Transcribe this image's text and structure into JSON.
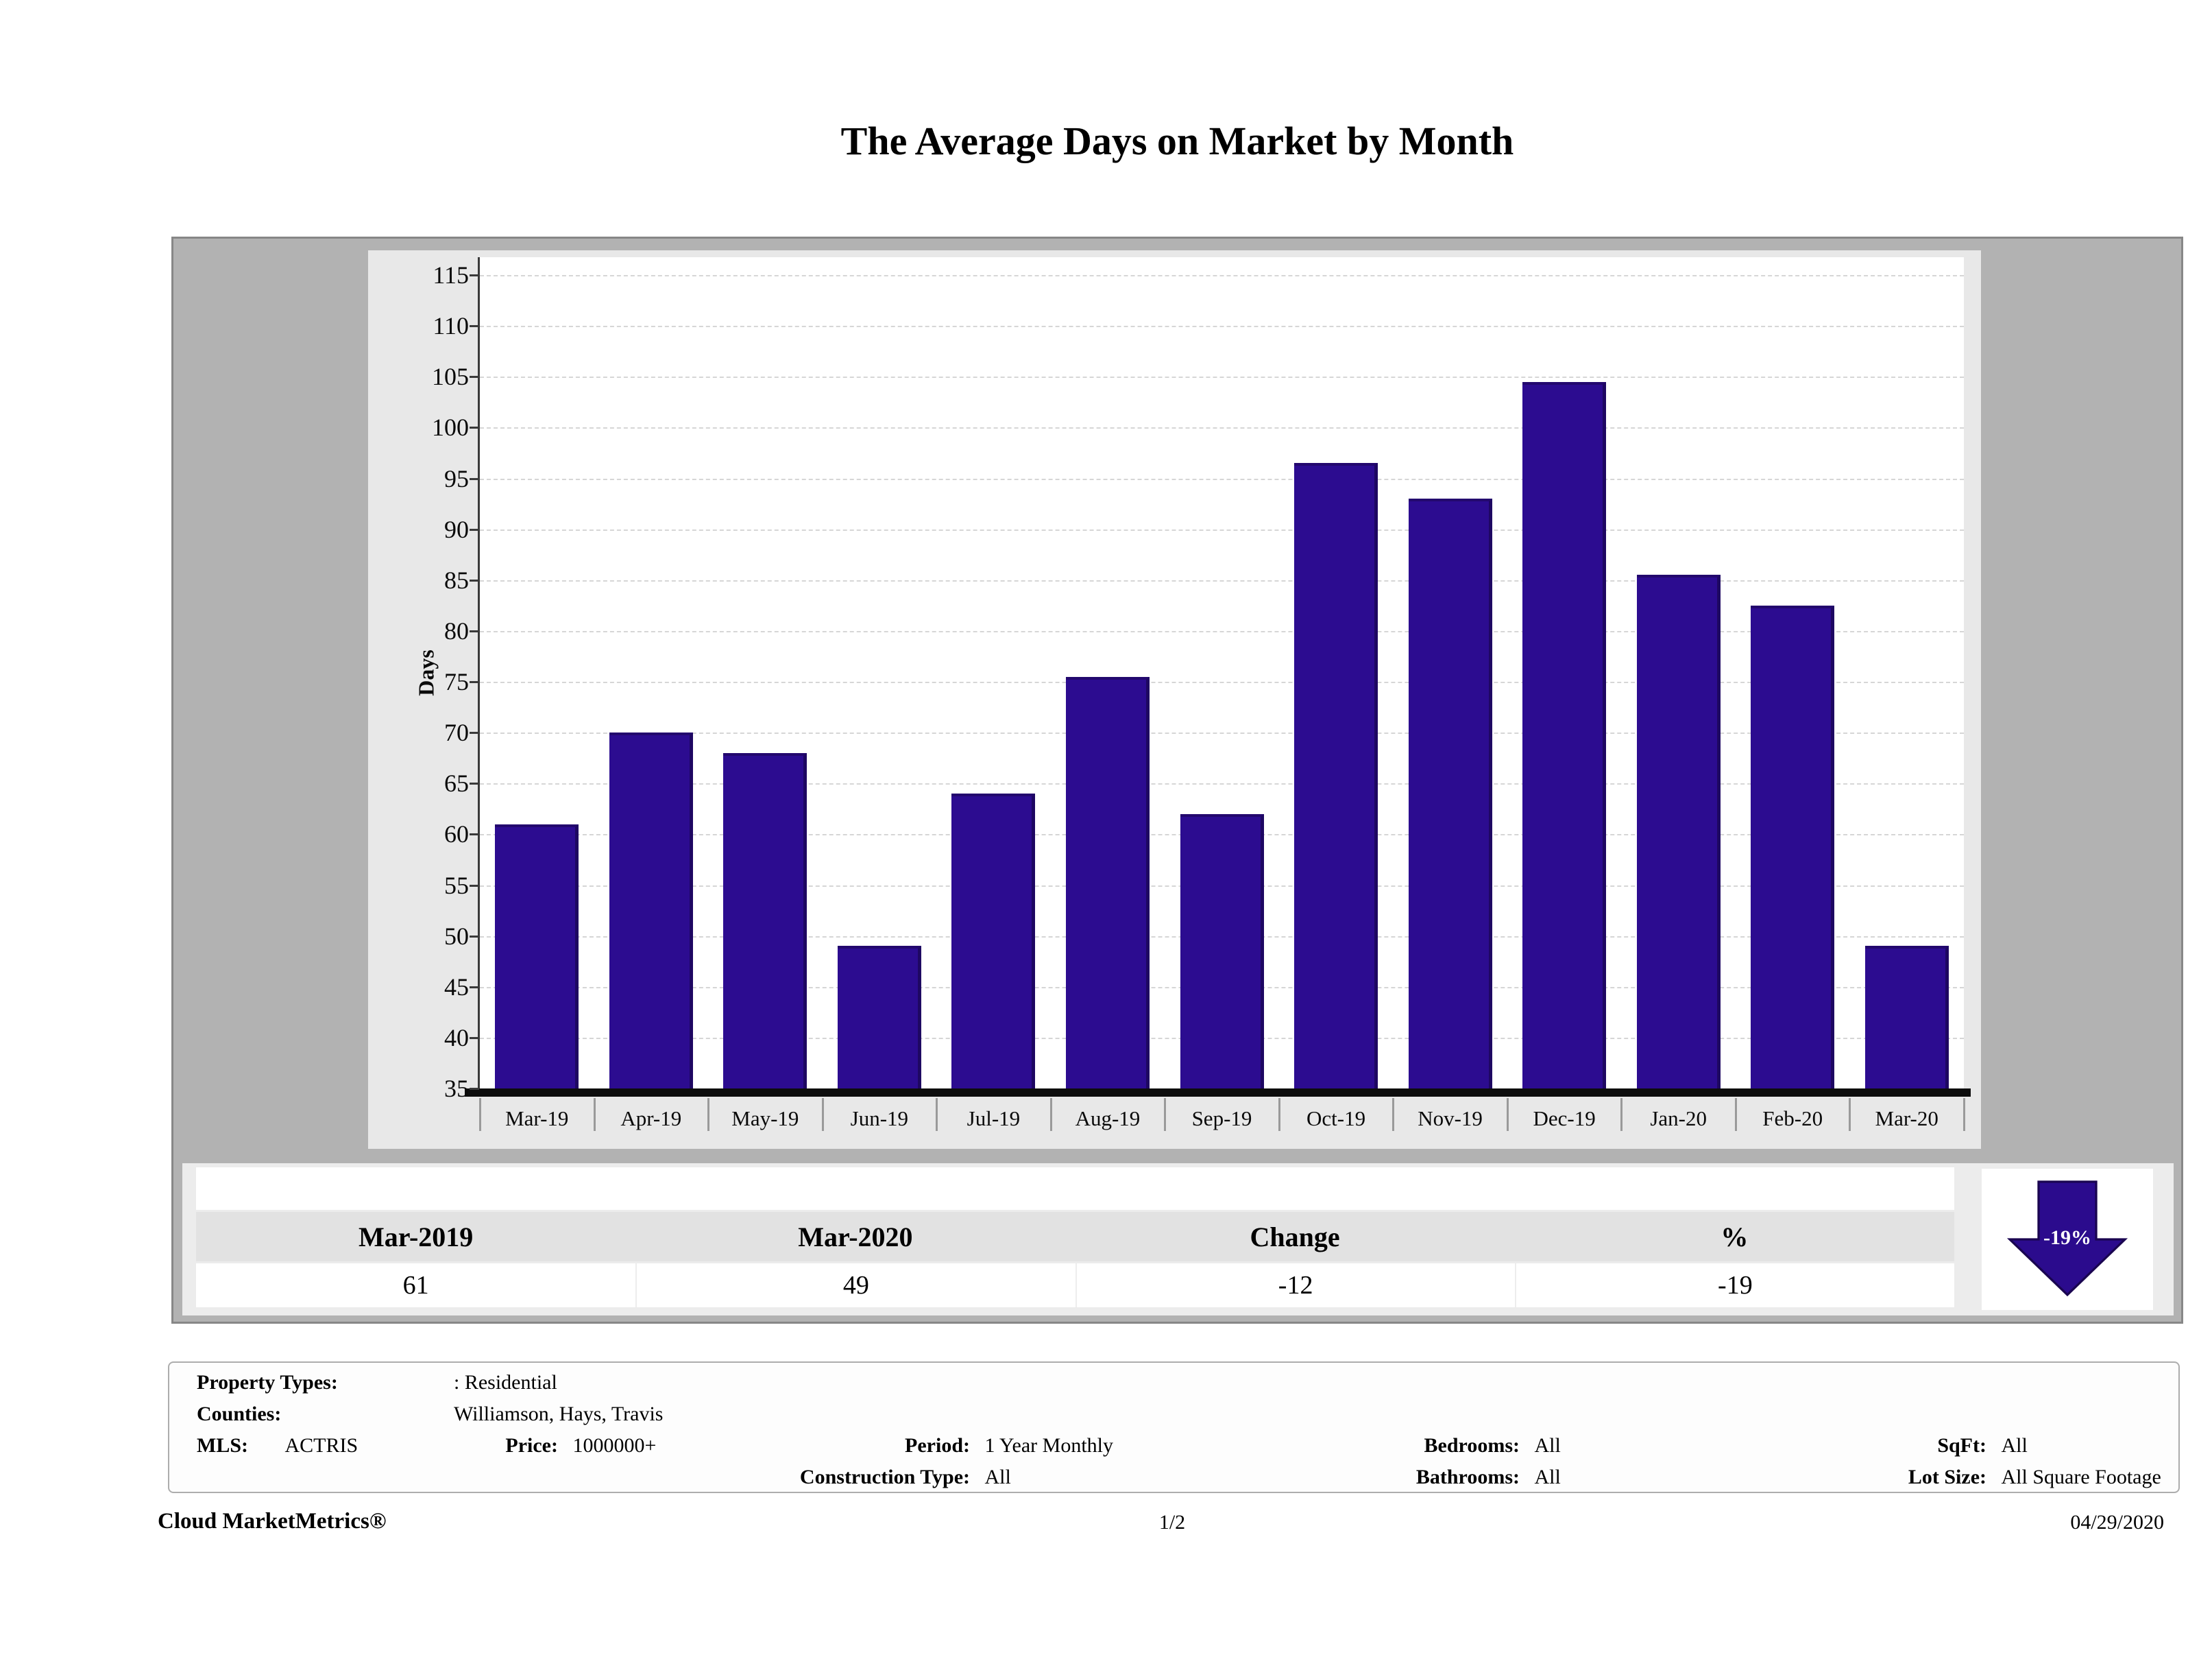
{
  "title": "The Average Days on Market by Month",
  "chart_data": {
    "type": "bar",
    "title": "The Average Days on Market by Month",
    "categories": [
      "Mar-19",
      "Apr-19",
      "May-19",
      "Jun-19",
      "Jul-19",
      "Aug-19",
      "Sep-19",
      "Oct-19",
      "Nov-19",
      "Dec-19",
      "Jan-20",
      "Feb-20",
      "Mar-20"
    ],
    "values": [
      61,
      70,
      68,
      49,
      64,
      75.5,
      62,
      96.5,
      93,
      104.5,
      85.5,
      82.5,
      49
    ],
    "xlabel": "",
    "ylabel": "Days",
    "ylim": [
      35,
      115
    ],
    "ytick_step": 5,
    "grid": true,
    "legend": null,
    "bar_color": "#2c0c90"
  },
  "summary_table": {
    "headers": [
      "Mar-2019",
      "Mar-2020",
      "Change",
      "%"
    ],
    "values": [
      "61",
      "49",
      "-12",
      "-19"
    ]
  },
  "change_badge": {
    "label": "-19%",
    "direction": "down",
    "color": "#2b0b8d"
  },
  "filters": {
    "property_types_label": "Property Types:",
    "property_types_value": ": Residential",
    "counties_label": "Counties:",
    "counties_value": "Williamson, Hays, Travis",
    "mls_label": "MLS:",
    "mls_value": "ACTRIS",
    "price_label": "Price:",
    "price_value": "1000000+",
    "period_label": "Period:",
    "period_value": "1 Year Monthly",
    "construction_label": "Construction Type:",
    "construction_value": "All",
    "bedrooms_label": "Bedrooms:",
    "bedrooms_value": "All",
    "bathrooms_label": "Bathrooms:",
    "bathrooms_value": "All",
    "sqft_label": "SqFt:",
    "sqft_value": "All",
    "lot_size_label": "Lot Size:",
    "lot_size_value": "All Square Footage"
  },
  "footer": {
    "brand": "Cloud MarketMetrics®",
    "page": "1/2",
    "date": "04/29/2020"
  }
}
